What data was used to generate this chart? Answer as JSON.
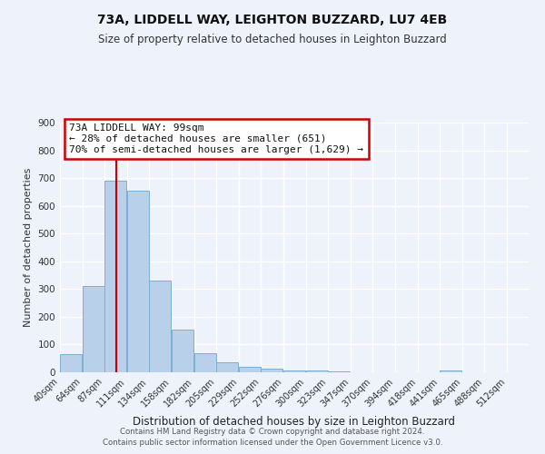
{
  "title": "73A, LIDDELL WAY, LEIGHTON BUZZARD, LU7 4EB",
  "subtitle": "Size of property relative to detached houses in Leighton Buzzard",
  "xlabel": "Distribution of detached houses by size in Leighton Buzzard",
  "ylabel": "Number of detached properties",
  "bar_left_edges": [
    40,
    64,
    87,
    111,
    134,
    158,
    182,
    205,
    229,
    252,
    276,
    300,
    323,
    347,
    370,
    394,
    418,
    441,
    465,
    488
  ],
  "bar_heights": [
    65,
    310,
    690,
    655,
    330,
    155,
    68,
    35,
    20,
    12,
    8,
    5,
    3,
    0,
    0,
    0,
    0,
    8,
    0,
    0
  ],
  "bin_width": 23,
  "bar_color": "#b8d0ea",
  "bar_edge_color": "#7aafd4",
  "background_color": "#eef2fb",
  "grid_color": "#ffffff",
  "vline_x": 99,
  "vline_color": "#cc0000",
  "annotation_title": "73A LIDDELL WAY: 99sqm",
  "annotation_line1": "← 28% of detached houses are smaller (651)",
  "annotation_line2": "70% of semi-detached houses are larger (1,629) →",
  "annotation_box_color": "#cc0000",
  "tick_labels": [
    "40sqm",
    "64sqm",
    "87sqm",
    "111sqm",
    "134sqm",
    "158sqm",
    "182sqm",
    "205sqm",
    "229sqm",
    "252sqm",
    "276sqm",
    "300sqm",
    "323sqm",
    "347sqm",
    "370sqm",
    "394sqm",
    "418sqm",
    "441sqm",
    "465sqm",
    "488sqm",
    "512sqm"
  ],
  "ylim": [
    0,
    900
  ],
  "yticks": [
    0,
    100,
    200,
    300,
    400,
    500,
    600,
    700,
    800,
    900
  ],
  "footer1": "Contains HM Land Registry data © Crown copyright and database right 2024.",
  "footer2": "Contains public sector information licensed under the Open Government Licence v3.0."
}
